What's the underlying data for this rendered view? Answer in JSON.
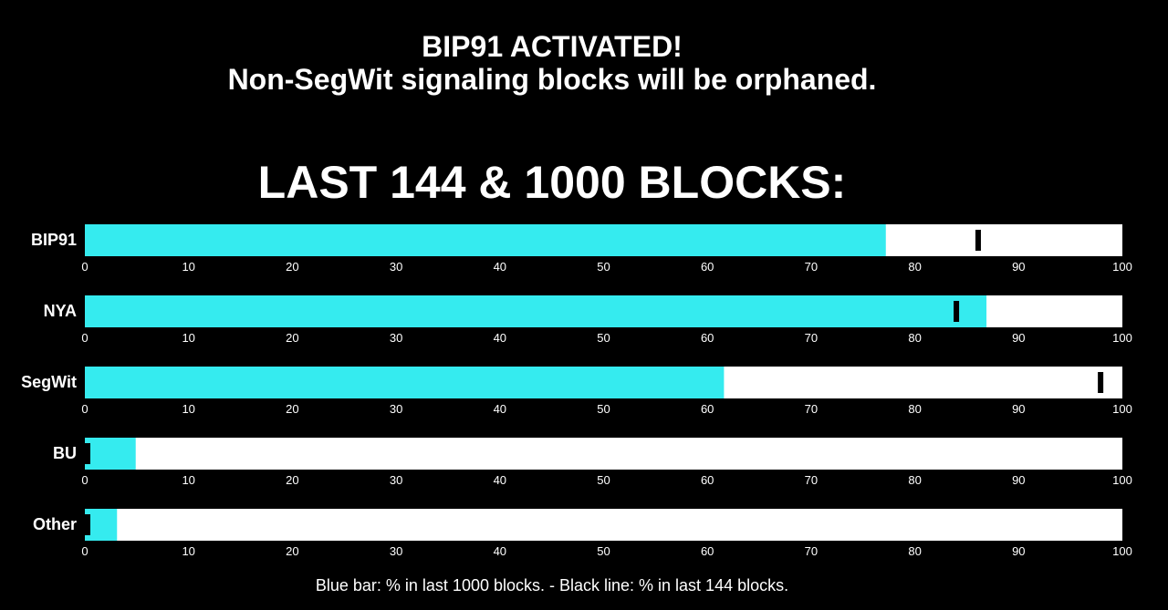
{
  "header": {
    "line1": "BIP91 ACTIVATED!",
    "line2": "Non-SegWit signaling blocks will be orphaned."
  },
  "footnote": "Blue bar: % in last 1000 blocks. - Black line: % in last 144 blocks.",
  "colors": {
    "background": "#000000",
    "bar_fill": "#35ebef",
    "track": "#ffffff",
    "marker": "#000000",
    "text": "#ffffff"
  },
  "chart_data": {
    "type": "bar",
    "orientation": "horizontal",
    "title": "LAST 144 & 1000 BLOCKS:",
    "categories": [
      "BIP91",
      "NYA",
      "SegWit",
      "BU",
      "Other"
    ],
    "xlim": [
      0,
      100
    ],
    "ticks": [
      0,
      10,
      20,
      30,
      40,
      50,
      60,
      70,
      80,
      90,
      100
    ],
    "grid": false,
    "legend": "bottom",
    "series": [
      {
        "name": "% in last 1000 blocks",
        "mark": "bar",
        "values": [
          77.2,
          86.9,
          61.6,
          4.9,
          3.1
        ]
      },
      {
        "name": "% in last 144 blocks",
        "mark": "line",
        "values": [
          86.1,
          84.0,
          97.9,
          0.0,
          0.0
        ]
      }
    ]
  }
}
